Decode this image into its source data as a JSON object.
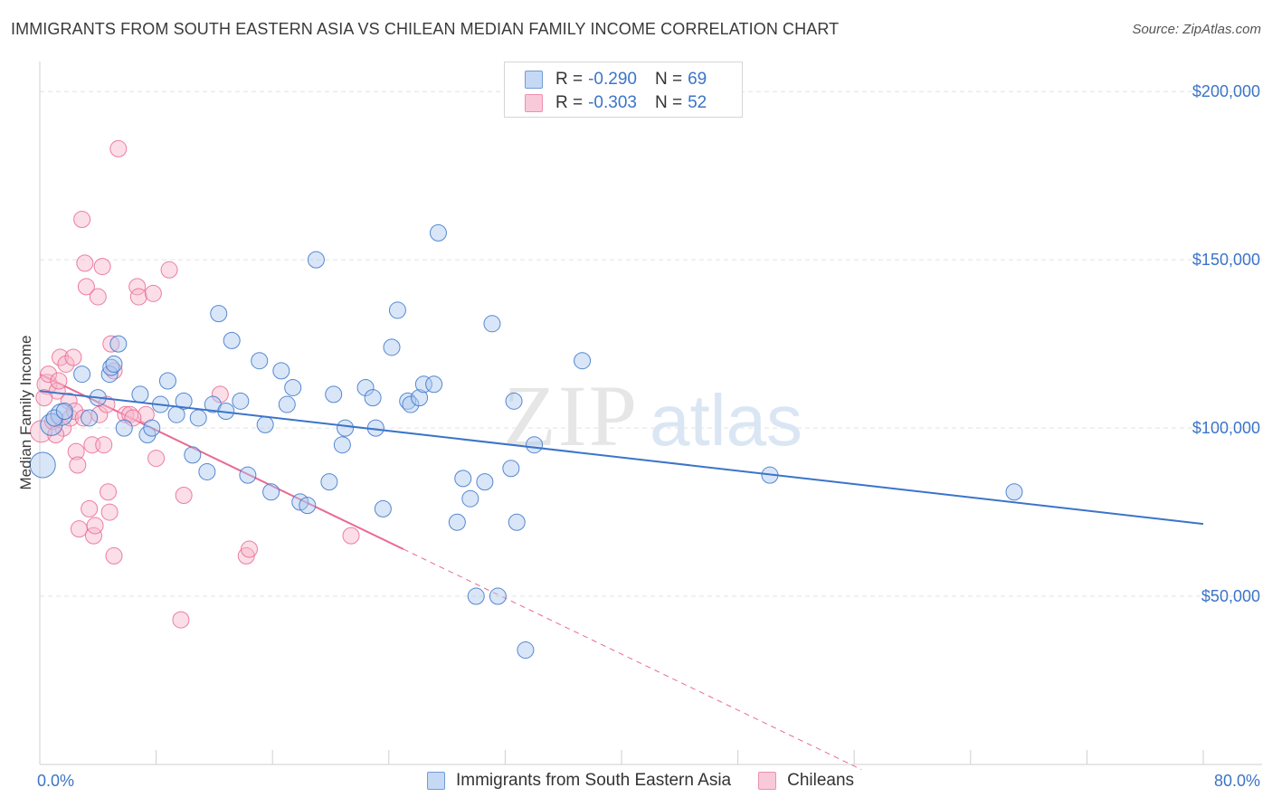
{
  "title": "IMMIGRANTS FROM SOUTH EASTERN ASIA VS CHILEAN MEDIAN FAMILY INCOME CORRELATION CHART",
  "source": "Source: ZipAtlas.com",
  "watermark": {
    "zip": "ZIP",
    "atlas": "atlas"
  },
  "colors": {
    "blue": "#3b74c9",
    "blue_fill": "#aac8ef",
    "pink": "#e96a93",
    "pink_fill": "#f6b5c9",
    "grid": "#e3e3e3"
  },
  "legend_top": {
    "rows": [
      {
        "r_label": "R =",
        "r_value": "-0.290",
        "n_label": "N =",
        "n_value": "69"
      },
      {
        "r_label": "R =",
        "r_value": "-0.303",
        "n_label": "N =",
        "n_value": "52"
      }
    ]
  },
  "legend_bottom": {
    "series1": "Immigrants from South Eastern Asia",
    "series2": "Chileans"
  },
  "chart_data": {
    "type": "scatter",
    "title": "IMMIGRANTS FROM SOUTH EASTERN ASIA VS CHILEAN MEDIAN FAMILY INCOME CORRELATION CHART",
    "xlabel": "",
    "ylabel": "Median Family Income",
    "xlim": [
      0,
      80
    ],
    "ylim": [
      0,
      210000
    ],
    "x_tick_labels": [
      "0.0%",
      "80.0%"
    ],
    "y_ticks": [
      50000,
      100000,
      150000,
      200000
    ],
    "y_tick_labels": [
      "$50,000",
      "$100,000",
      "$150,000",
      "$200,000"
    ],
    "grid": true,
    "legend_position": "bottom",
    "series": [
      {
        "name": "Immigrants from South Eastern Asia",
        "r": -0.29,
        "n": 69,
        "trend": {
          "x0": 0,
          "y0": 111000,
          "x1": 80,
          "y1": 71500
        },
        "points": [
          [
            0.2,
            89000,
            14
          ],
          [
            0.8,
            101000,
            12
          ],
          [
            1.5,
            104000,
            12
          ],
          [
            1.0,
            103000,
            9
          ],
          [
            2.9,
            116000,
            9
          ],
          [
            4.0,
            109000,
            9
          ],
          [
            3.4,
            103000,
            9
          ],
          [
            4.8,
            116000,
            9
          ],
          [
            4.9,
            118000,
            9
          ],
          [
            5.4,
            125000,
            9
          ],
          [
            5.1,
            119000,
            9
          ],
          [
            5.8,
            100000,
            9
          ],
          [
            6.9,
            110000,
            9
          ],
          [
            7.4,
            98000,
            9
          ],
          [
            7.7,
            100000,
            9
          ],
          [
            8.3,
            107000,
            9
          ],
          [
            8.8,
            114000,
            9
          ],
          [
            9.4,
            104000,
            9
          ],
          [
            9.9,
            108000,
            9
          ],
          [
            10.5,
            92000,
            9
          ],
          [
            10.9,
            103000,
            9
          ],
          [
            11.5,
            87000,
            9
          ],
          [
            11.9,
            107000,
            9
          ],
          [
            12.3,
            134000,
            9
          ],
          [
            12.8,
            105000,
            9
          ],
          [
            13.2,
            126000,
            9
          ],
          [
            13.8,
            108000,
            9
          ],
          [
            14.3,
            86000,
            9
          ],
          [
            15.1,
            120000,
            9
          ],
          [
            15.5,
            101000,
            9
          ],
          [
            15.9,
            81000,
            9
          ],
          [
            16.6,
            117000,
            9
          ],
          [
            17.0,
            107000,
            9
          ],
          [
            17.4,
            112000,
            9
          ],
          [
            17.9,
            78000,
            9
          ],
          [
            18.4,
            77000,
            9
          ],
          [
            19.0,
            150000,
            9
          ],
          [
            19.9,
            84000,
            9
          ],
          [
            20.2,
            110000,
            9
          ],
          [
            20.8,
            95000,
            9
          ],
          [
            21.0,
            100000,
            9
          ],
          [
            22.4,
            112000,
            9
          ],
          [
            22.9,
            109000,
            9
          ],
          [
            23.1,
            100000,
            9
          ],
          [
            23.6,
            76000,
            9
          ],
          [
            24.2,
            124000,
            9
          ],
          [
            24.6,
            135000,
            9
          ],
          [
            25.3,
            108000,
            9
          ],
          [
            25.5,
            107000,
            9
          ],
          [
            26.1,
            109000,
            9
          ],
          [
            26.4,
            113000,
            9
          ],
          [
            27.1,
            113000,
            9
          ],
          [
            27.4,
            158000,
            9
          ],
          [
            28.7,
            72000,
            9
          ],
          [
            29.1,
            85000,
            9
          ],
          [
            29.6,
            79000,
            9
          ],
          [
            30.0,
            50000,
            9
          ],
          [
            30.6,
            84000,
            9
          ],
          [
            31.1,
            131000,
            9
          ],
          [
            31.5,
            50000,
            9
          ],
          [
            32.4,
            88000,
            9
          ],
          [
            32.6,
            108000,
            9
          ],
          [
            32.8,
            72000,
            9
          ],
          [
            33.4,
            34000,
            9
          ],
          [
            34.0,
            95000,
            9
          ],
          [
            37.3,
            120000,
            9
          ],
          [
            50.2,
            86000,
            9
          ],
          [
            67.0,
            81000,
            9
          ],
          [
            1.7,
            105000,
            9
          ]
        ]
      },
      {
        "name": "Chileans",
        "r": -0.303,
        "n": 52,
        "trend": {
          "x0": 0,
          "y0": 116000,
          "x1": 25,
          "y1": 64000,
          "dash_x1": 56.5,
          "dash_y1": -1500
        },
        "points": [
          [
            0.1,
            99000,
            12
          ],
          [
            0.5,
            113000,
            11
          ],
          [
            0.6,
            116000,
            9
          ],
          [
            0.9,
            102000,
            9
          ],
          [
            1.2,
            111000,
            9
          ],
          [
            1.3,
            114000,
            9
          ],
          [
            1.6,
            100000,
            9
          ],
          [
            1.4,
            121000,
            9
          ],
          [
            1.8,
            119000,
            9
          ],
          [
            2.0,
            108000,
            9
          ],
          [
            2.1,
            103000,
            9
          ],
          [
            2.3,
            121000,
            9
          ],
          [
            2.4,
            105000,
            9
          ],
          [
            2.5,
            93000,
            9
          ],
          [
            2.6,
            89000,
            9
          ],
          [
            2.7,
            70000,
            9
          ],
          [
            2.9,
            162000,
            9
          ],
          [
            3.1,
            149000,
            9
          ],
          [
            3.2,
            142000,
            9
          ],
          [
            3.4,
            76000,
            9
          ],
          [
            3.6,
            95000,
            9
          ],
          [
            3.7,
            68000,
            9
          ],
          [
            3.8,
            71000,
            9
          ],
          [
            4.0,
            139000,
            9
          ],
          [
            4.1,
            104000,
            9
          ],
          [
            4.3,
            148000,
            9
          ],
          [
            4.4,
            95000,
            9
          ],
          [
            4.6,
            107000,
            9
          ],
          [
            4.7,
            81000,
            9
          ],
          [
            4.8,
            75000,
            9
          ],
          [
            4.9,
            125000,
            9
          ],
          [
            5.1,
            117000,
            9
          ],
          [
            5.1,
            62000,
            9
          ],
          [
            5.4,
            183000,
            9
          ],
          [
            5.9,
            104000,
            9
          ],
          [
            6.2,
            104000,
            9
          ],
          [
            6.7,
            142000,
            9
          ],
          [
            6.8,
            139000,
            9
          ],
          [
            7.3,
            104000,
            9
          ],
          [
            7.8,
            140000,
            9
          ],
          [
            8.0,
            91000,
            9
          ],
          [
            8.9,
            147000,
            9
          ],
          [
            9.7,
            43000,
            9
          ],
          [
            9.9,
            80000,
            9
          ],
          [
            12.4,
            110000,
            9
          ],
          [
            14.2,
            62000,
            9
          ],
          [
            14.4,
            64000,
            9
          ],
          [
            21.4,
            68000,
            9
          ],
          [
            1.1,
            98000,
            9
          ],
          [
            0.3,
            109000,
            9
          ],
          [
            3.0,
            103000,
            9
          ],
          [
            6.4,
            103000,
            9
          ]
        ]
      }
    ]
  }
}
